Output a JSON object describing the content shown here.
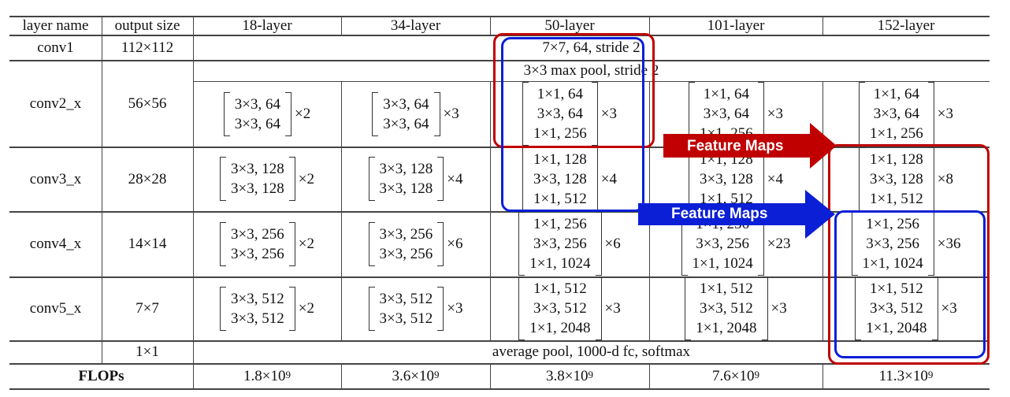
{
  "table": {
    "headers": [
      "layer name",
      "output size",
      "18-layer",
      "34-layer",
      "50-layer",
      "101-layer",
      "152-layer"
    ],
    "conv1": {
      "name": "conv1",
      "size": "112×112",
      "spec": "7×7, 64, stride 2"
    },
    "pool": {
      "spec": "3×3 max pool, stride 2"
    },
    "rows": [
      {
        "name": "conv2_x",
        "size": "56×56",
        "cells": [
          {
            "lines": [
              "3×3, 64",
              "3×3, 64"
            ],
            "mult": "×2"
          },
          {
            "lines": [
              "3×3, 64",
              "3×3, 64"
            ],
            "mult": "×3"
          },
          {
            "lines": [
              "1×1, 64",
              "3×3, 64",
              "1×1, 256"
            ],
            "mult": "×3"
          },
          {
            "lines": [
              "1×1, 64",
              "3×3, 64",
              "1×1, 256"
            ],
            "mult": "×3"
          },
          {
            "lines": [
              "1×1, 64",
              "3×3, 64",
              "1×1, 256"
            ],
            "mult": "×3"
          }
        ]
      },
      {
        "name": "conv3_x",
        "size": "28×28",
        "cells": [
          {
            "lines": [
              "3×3, 128",
              "3×3, 128"
            ],
            "mult": "×2"
          },
          {
            "lines": [
              "3×3, 128",
              "3×3, 128"
            ],
            "mult": "×4"
          },
          {
            "lines": [
              "1×1, 128",
              "3×3, 128",
              "1×1, 512"
            ],
            "mult": "×4"
          },
          {
            "lines": [
              "1×1, 128",
              "3×3, 128",
              "1×1, 512"
            ],
            "mult": "×4"
          },
          {
            "lines": [
              "1×1, 128",
              "3×3, 128",
              "1×1, 512"
            ],
            "mult": "×8"
          }
        ]
      },
      {
        "name": "conv4_x",
        "size": "14×14",
        "cells": [
          {
            "lines": [
              "3×3, 256",
              "3×3, 256"
            ],
            "mult": "×2"
          },
          {
            "lines": [
              "3×3, 256",
              "3×3, 256"
            ],
            "mult": "×6"
          },
          {
            "lines": [
              "1×1, 256",
              "3×3, 256",
              "1×1, 1024"
            ],
            "mult": "×6"
          },
          {
            "lines": [
              "1×1, 256",
              "3×3, 256",
              "1×1, 1024"
            ],
            "mult": "×23"
          },
          {
            "lines": [
              "1×1, 256",
              "3×3, 256",
              "1×1, 1024"
            ],
            "mult": "×36"
          }
        ]
      },
      {
        "name": "conv5_x",
        "size": "7×7",
        "cells": [
          {
            "lines": [
              "3×3, 512",
              "3×3, 512"
            ],
            "mult": "×2"
          },
          {
            "lines": [
              "3×3, 512",
              "3×3, 512"
            ],
            "mult": "×3"
          },
          {
            "lines": [
              "1×1, 512",
              "3×3, 512",
              "1×1, 2048"
            ],
            "mult": "×3"
          },
          {
            "lines": [
              "1×1, 512",
              "3×3, 512",
              "1×1, 2048"
            ],
            "mult": "×3"
          },
          {
            "lines": [
              "1×1, 512",
              "3×3, 512",
              "1×1, 2048"
            ],
            "mult": "×3"
          }
        ]
      }
    ],
    "final": {
      "size": "1×1",
      "spec": "average pool, 1000-d fc, softmax"
    },
    "flops": {
      "label": "FLOPs",
      "base": "×10",
      "exp": "9",
      "values": [
        "1.8",
        "3.6",
        "3.8",
        "7.6",
        "11.3"
      ]
    }
  },
  "annotations": {
    "arrow_top_label": "Feature Maps",
    "arrow_bottom_label": "Feature Maps",
    "colors": {
      "red": "#c00000",
      "blue": "#0a1fd6"
    }
  }
}
